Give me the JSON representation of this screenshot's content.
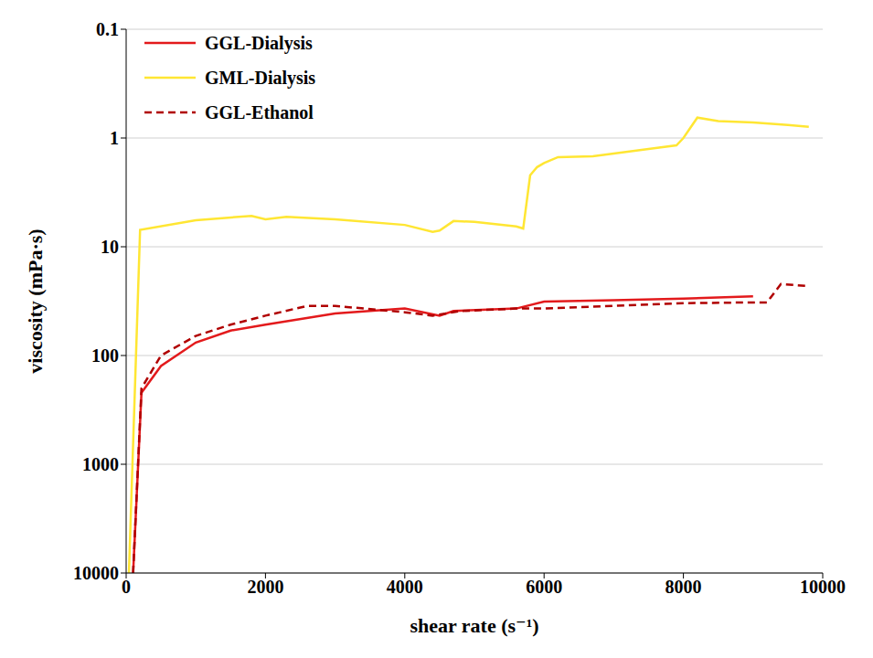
{
  "chart_data": {
    "type": "line",
    "x_label": "shear rate (s⁻¹)",
    "y_label": "viscosity (mPa·s)",
    "xlim": [
      0,
      10000
    ],
    "xticks": [
      0,
      2000,
      4000,
      6000,
      8000,
      10000
    ],
    "ylim": [
      0.1,
      10000
    ],
    "yticks": [
      0.1,
      1,
      10,
      100,
      1000,
      10000
    ],
    "log": "y",
    "grid": true,
    "legend": "upper left",
    "series": [
      {
        "name": "GGL-Dialysis",
        "color": "#e31a1c",
        "line_style": "solid",
        "x": [
          100,
          220,
          500,
          1000,
          1500,
          2000,
          3000,
          4000,
          4500,
          4700,
          5600,
          6000,
          7000,
          8000,
          9000
        ],
        "values": [
          10000,
          220,
          125,
          76,
          59,
          52,
          41,
          37,
          43,
          39,
          37,
          32,
          31,
          30,
          28.5
        ]
      },
      {
        "name": "GML-Dialysis",
        "color": "#ffe633",
        "line_style": "solid",
        "x": [
          40,
          200,
          1000,
          1800,
          2000,
          2300,
          3000,
          4000,
          4400,
          4500,
          4700,
          5000,
          5600,
          5700,
          5800,
          5900,
          6000,
          6200,
          6700,
          7500,
          7900,
          8000,
          8200,
          8500,
          9000,
          9500,
          9800
        ],
        "values": [
          10000,
          7,
          5.7,
          5.2,
          5.6,
          5.3,
          5.6,
          6.3,
          7.3,
          7.1,
          5.8,
          5.9,
          6.5,
          6.8,
          2.2,
          1.85,
          1.7,
          1.5,
          1.47,
          1.26,
          1.17,
          1,
          0.65,
          0.7,
          0.72,
          0.76,
          0.79
        ]
      },
      {
        "name": "GGL-Ethanol",
        "color": "#b00000",
        "line_style": "dashed",
        "x": [
          100,
          220,
          500,
          1000,
          1500,
          2000,
          2600,
          3000,
          4000,
          4400,
          4800,
          5600,
          6000,
          7000,
          8000,
          9000,
          9200,
          9400,
          9800
        ],
        "values": [
          10000,
          200,
          100,
          66,
          52,
          43,
          35,
          35,
          40,
          43,
          39,
          37,
          37,
          35,
          33,
          32.5,
          32.5,
          22,
          23
        ]
      }
    ]
  }
}
